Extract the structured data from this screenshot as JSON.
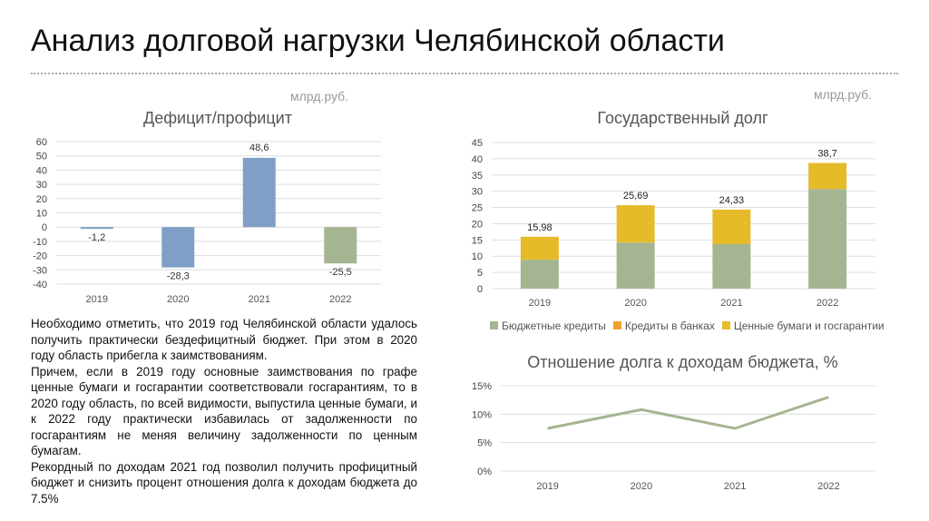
{
  "title": "Анализ долговой нагрузки Челябинской области",
  "paragraphs": [
    "Необходимо отметить, что 2019 год Челябинской области удалось получить практически бездефицитный бюджет. При этом в 2020 году область прибегла к заимствованиям.",
    "Причем, если в 2019 году основные заимствования по графе ценные бумаги и госгарантии соответствовали госгарантиям, то в 2020 году область, по всей видимости, выпустила ценные бумаги, и к 2022 году практически избавилась от задолженности по госгарантиям не меняя величину задолженности по ценным бумагам.",
    "Рекордный по доходам 2021 год позволил получить профицитный бюджет и снизить процент отношения долга к доходам бюджета до 7.5%"
  ],
  "chart_data": [
    {
      "type": "bar",
      "title": "Дефицит/профицит",
      "unit": "млрд.руб.",
      "categories": [
        "2019",
        "2020",
        "2021",
        "2022"
      ],
      "values": [
        -1.2,
        -28.3,
        48.6,
        -25.5
      ],
      "labels": [
        "-1,2",
        "-28,3",
        "48,6",
        "-25,5"
      ],
      "colors": [
        "#7f9fc6",
        "#7f9fc6",
        "#7f9fc6",
        "#a5b592"
      ],
      "ylim": [
        -40,
        60
      ],
      "yticks": [
        60,
        50,
        40,
        30,
        20,
        10,
        0,
        -10,
        -20,
        -30,
        -40
      ],
      "grid": true
    },
    {
      "type": "bar",
      "stacked": true,
      "title": "Государственный долг",
      "unit": "млрд.руб.",
      "categories": [
        "2019",
        "2020",
        "2021",
        "2022"
      ],
      "series": [
        {
          "name": "Бюджетные кредиты",
          "color": "#a5b592",
          "values": [
            8.9,
            14.2,
            13.7,
            30.7
          ]
        },
        {
          "name": "Кредиты в банках",
          "color": "#f0a030",
          "values": [
            0,
            0,
            0,
            0
          ]
        },
        {
          "name": "Ценные бумаги и госгарантии",
          "color": "#e6bb2a",
          "values": [
            7.08,
            11.49,
            10.63,
            8.0
          ]
        }
      ],
      "totals": [
        "15,98",
        "25,69",
        "24,33",
        "38,7"
      ],
      "ylim": [
        0,
        45
      ],
      "yticks": [
        45,
        40,
        35,
        30,
        25,
        20,
        15,
        10,
        5,
        0
      ],
      "grid": true,
      "legend": "bottom"
    },
    {
      "type": "line",
      "title": "Отношение долга к доходам бюджета, %",
      "categories": [
        "2019",
        "2020",
        "2021",
        "2022"
      ],
      "values": [
        7.5,
        10.8,
        7.5,
        13.0
      ],
      "color": "#a5b592",
      "ylim": [
        0,
        15
      ],
      "yticks": [
        "15%",
        "10%",
        "5%",
        "0%"
      ],
      "grid": true
    }
  ]
}
